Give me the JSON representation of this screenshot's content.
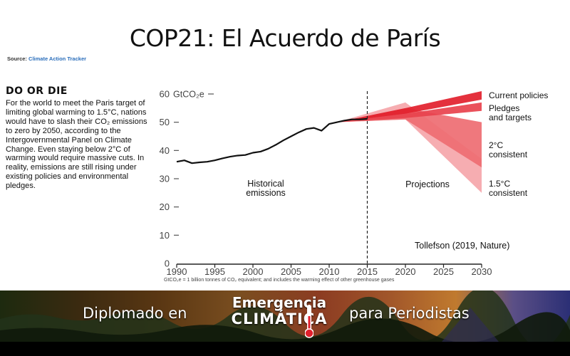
{
  "slide": {
    "title": "COP21: El Acuerdo de París",
    "source_label": "Source:",
    "source_link": "Climate Action Tracker"
  },
  "sidebar": {
    "heading": "DO OR DIE",
    "paragraph": "For the world to meet the Paris target of limiting global warming to 1.5°C, nations would have to slash their CO₂ emissions to zero by 2050, according to the Intergovernmental Panel on Climate Change. Even staying below 2°C of warming would require massive cuts. In reality, emissions are still rising under existing policies and environmental pledges."
  },
  "chart_data": {
    "type": "line",
    "ylabel_unit": "GtCO₂e",
    "xlim": [
      1990,
      2030
    ],
    "ylim": [
      0,
      60
    ],
    "x_ticks": [
      1990,
      1995,
      2000,
      2005,
      2010,
      2015,
      2020,
      2025,
      2030
    ],
    "y_ticks": [
      0,
      10,
      20,
      30,
      40,
      50,
      60
    ],
    "divider_year": 2015,
    "historical": {
      "label_line1": "Historical",
      "label_line2": "emissions",
      "x": [
        1990,
        1991,
        1992,
        1993,
        1994,
        1995,
        1996,
        1997,
        1998,
        1999,
        2000,
        2001,
        2002,
        2003,
        2004,
        2005,
        2006,
        2007,
        2008,
        2009,
        2010,
        2011,
        2012,
        2013,
        2014,
        2015
      ],
      "y": [
        36,
        36.5,
        35.5,
        35.8,
        36,
        36.5,
        37.2,
        37.8,
        38.2,
        38.4,
        39.2,
        39.6,
        40.6,
        42,
        43.6,
        45,
        46.4,
        47.6,
        48,
        47,
        49.4,
        50,
        50.6,
        51,
        51,
        51.2
      ]
    },
    "projections_label": "Projections",
    "projections": [
      {
        "name_line1": "Current policies",
        "name_line2": "",
        "color": "#e21f2d",
        "x": [
          2011,
          2020,
          2030
        ],
        "y_upper": [
          50,
          55,
          61
        ],
        "y_lower": [
          50,
          53,
          58
        ]
      },
      {
        "name_line1": "Pledges",
        "name_line2": "and targets",
        "color": "#e8424d",
        "x": [
          2011,
          2020,
          2030
        ],
        "y_upper": [
          50,
          53,
          57
        ],
        "y_lower": [
          50,
          51.5,
          54
        ]
      },
      {
        "name_line1": "2°C",
        "name_line2": "consistent",
        "color": "#ee6d72",
        "x": [
          2011,
          2020,
          2030
        ],
        "y_upper": [
          50,
          55,
          50
        ],
        "y_lower": [
          50,
          51,
          34
        ]
      },
      {
        "name_line1": "1.5°C",
        "name_line2": "consistent",
        "color": "#f5a6aa",
        "x": [
          2011,
          2020,
          2030
        ],
        "y_upper": [
          50,
          57,
          37
        ],
        "y_lower": [
          50,
          51,
          25
        ]
      }
    ],
    "annotation": "Tollefson (2019, Nature)",
    "footnote": "GtCO₂e = 1 billion tonnes of CO₂ equivalent; and includes the warming effect of other greenhouse gases"
  },
  "banner": {
    "left_text": "Diplomado en",
    "brand_line1": "Emergencia",
    "brand_line2": "CLIMÁTICA",
    "right_text": "para Periodistas"
  }
}
